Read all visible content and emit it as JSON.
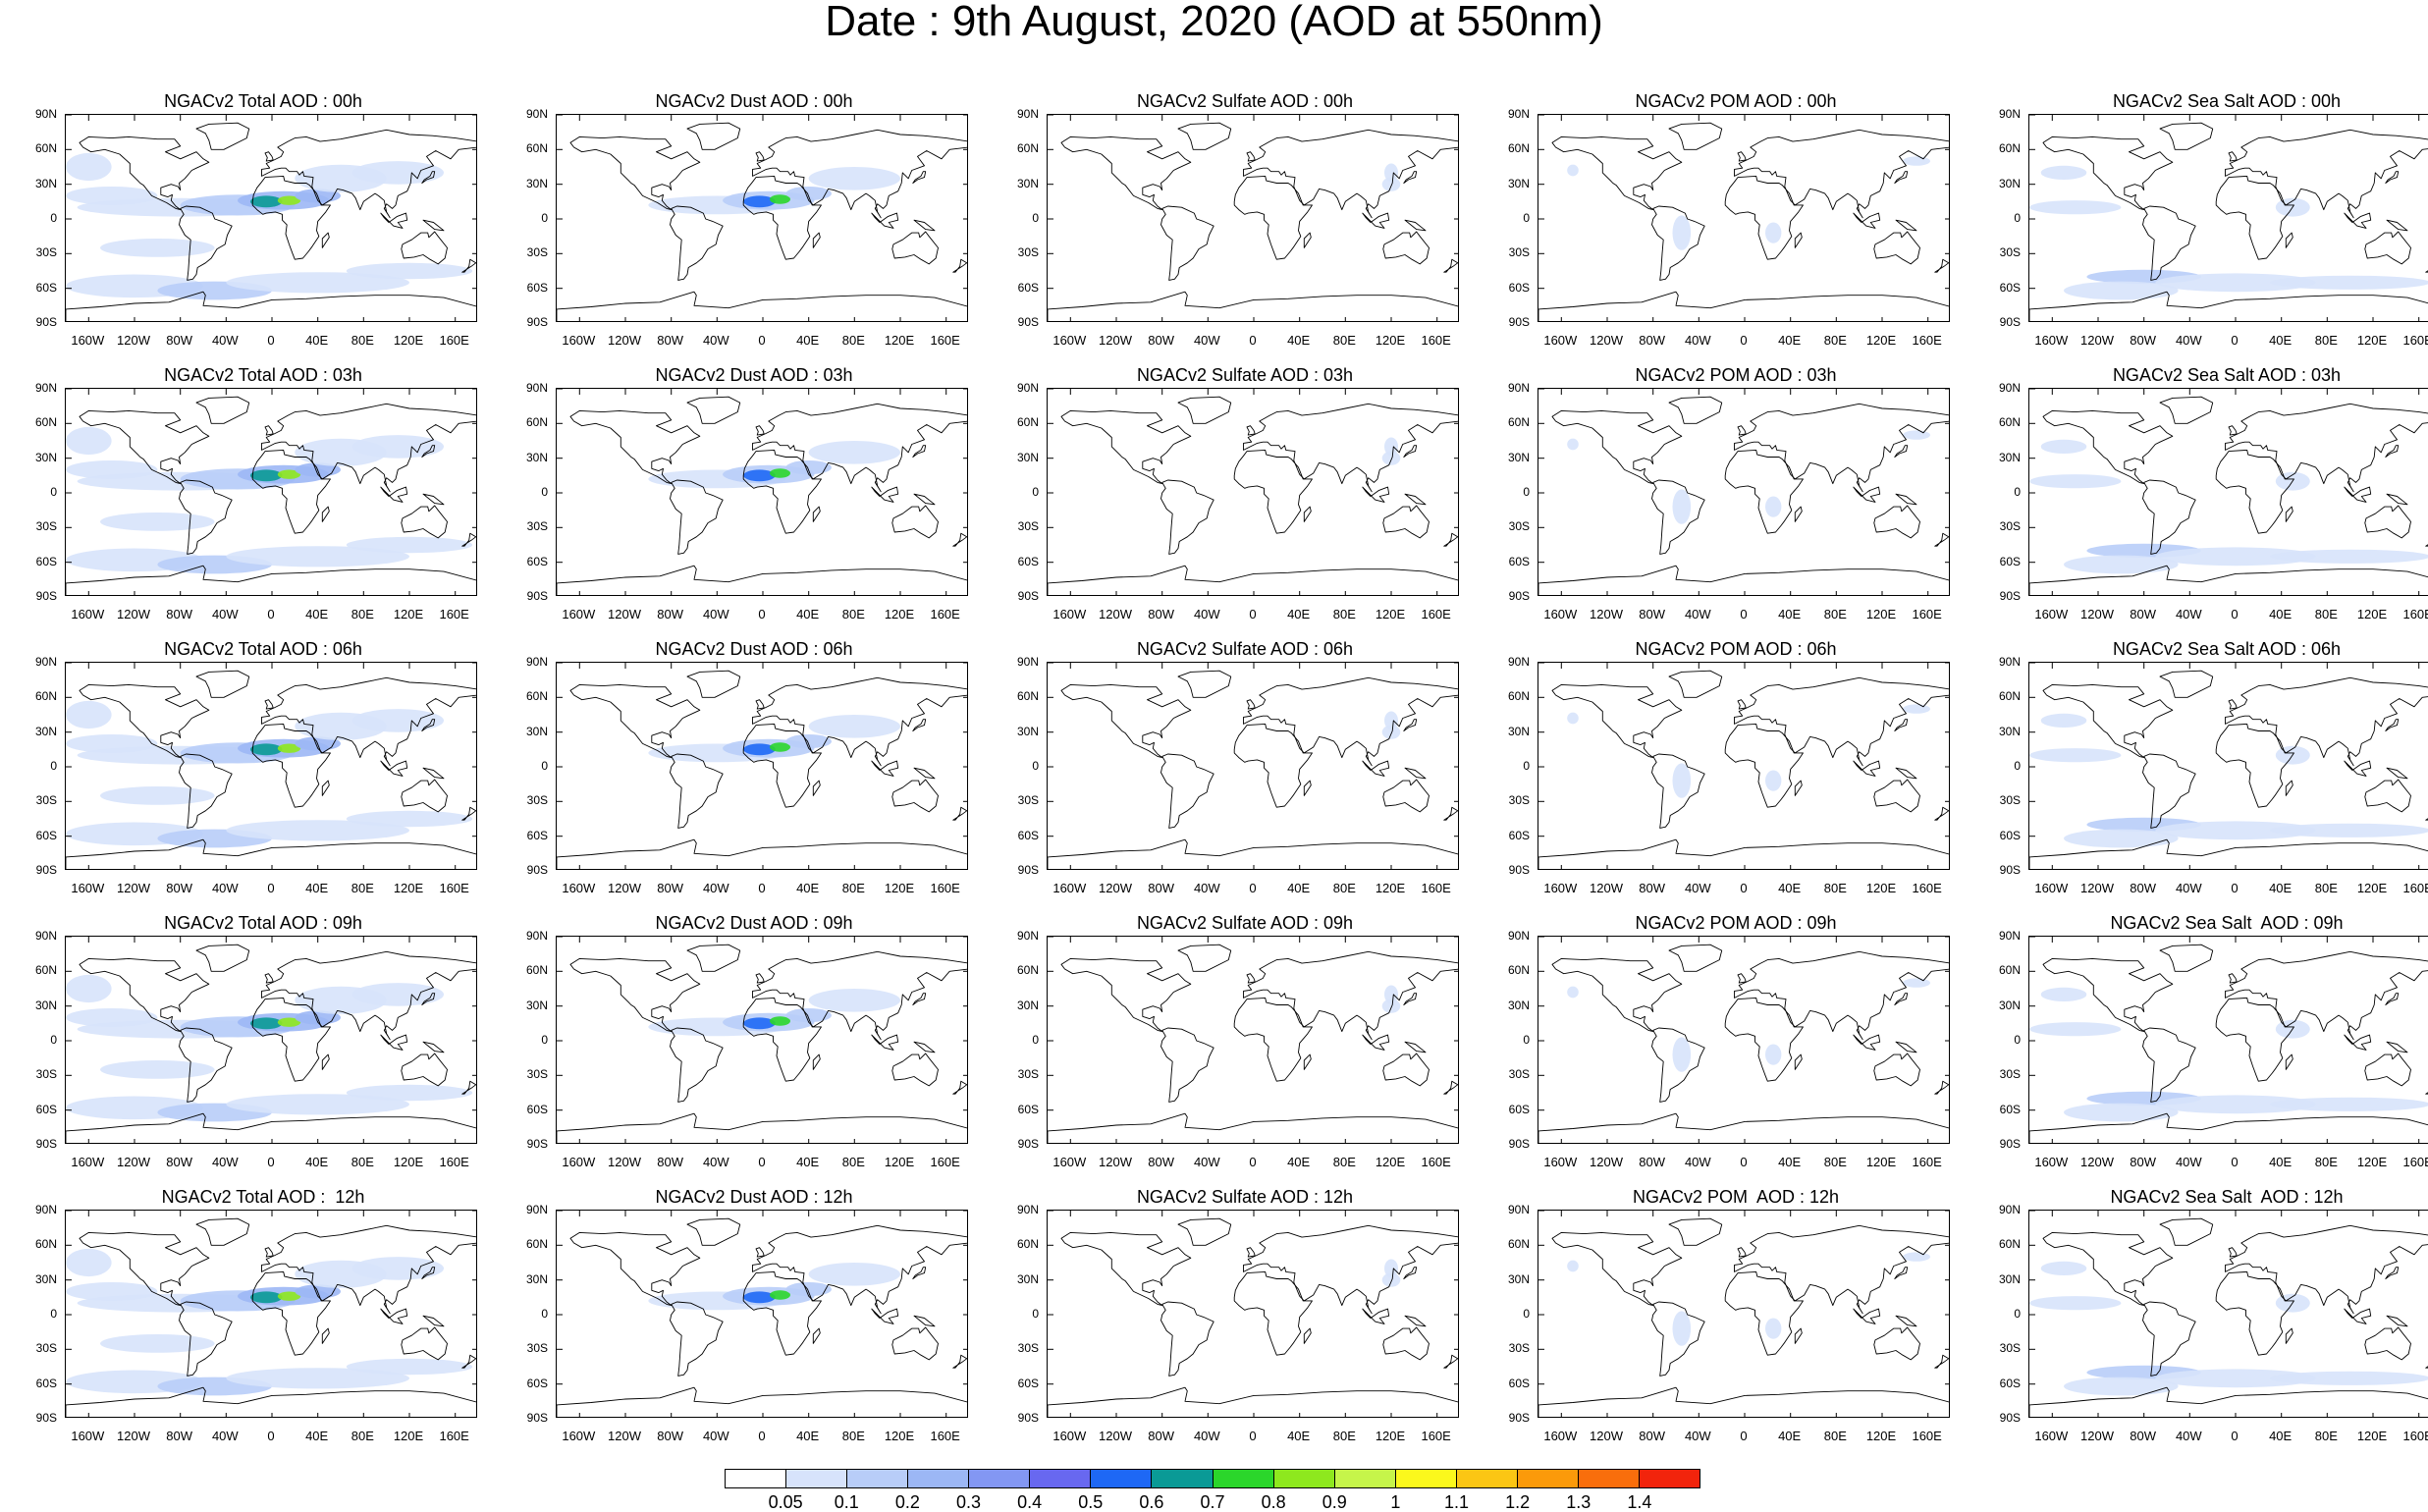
{
  "title": "Date : 9th August, 2020 (AOD at 550nm)",
  "lat_ticks": [
    "90N",
    "60N",
    "30N",
    "0",
    "30S",
    "60S",
    "90S"
  ],
  "lon_ticks": [
    "160W",
    "120W",
    "80W",
    "40W",
    "0",
    "40E",
    "80E",
    "120E",
    "160E"
  ],
  "lon_values": [
    -160,
    -120,
    -80,
    -40,
    0,
    40,
    80,
    120,
    160
  ],
  "columns": [
    "total",
    "dust",
    "sulfate",
    "pom",
    "seasalt"
  ],
  "panel_titles": [
    [
      "NGACv2 Total AOD : 00h",
      "NGACv2 Dust AOD : 00h",
      "NGACv2 Sulfate AOD : 00h",
      "NGACv2 POM AOD : 00h",
      "NGACv2 Sea Salt AOD : 00h"
    ],
    [
      "NGACv2 Total AOD : 03h",
      "NGACv2 Dust AOD : 03h",
      "NGACv2 Sulfate AOD : 03h",
      "NGACv2 POM AOD : 03h",
      "NGACv2 Sea Salt AOD : 03h"
    ],
    [
      "NGACv2 Total AOD : 06h",
      "NGACv2 Dust AOD : 06h",
      "NGACv2 Sulfate AOD : 06h",
      "NGACv2 POM AOD : 06h",
      "NGACv2 Sea Salt AOD : 06h"
    ],
    [
      "NGACv2 Total AOD : 09h",
      "NGACv2 Dust AOD : 09h",
      "NGACv2 Sulfate AOD : 09h",
      "NGACv2 POM AOD : 09h",
      "NGACv2 Sea Salt  AOD : 09h"
    ],
    [
      "NGACv2 Total AOD :  12h",
      "NGACv2 Dust AOD : 12h",
      "NGACv2 Sulfate AOD : 12h",
      "NGACv2 POM  AOD : 12h",
      "NGACv2 Sea Salt  AOD : 12h"
    ]
  ],
  "colorbar": {
    "labels": [
      "0.05",
      "0.1",
      "0.2",
      "0.3",
      "0.4",
      "0.5",
      "0.6",
      "0.7",
      "0.8",
      "0.9",
      "1",
      "1.1",
      "1.2",
      "1.3",
      "1.4"
    ],
    "colors": [
      "#ffffff",
      "#d7e3fb",
      "#b8cdf8",
      "#9cb7f5",
      "#8397f3",
      "#6868f0",
      "#1e68f5",
      "#0a9a96",
      "#2bd62b",
      "#8ee81e",
      "#c6f54a",
      "#fbf81c",
      "#fbc614",
      "#fb9a0a",
      "#f96e0c",
      "#f2240c"
    ]
  },
  "land_color": "#000000"
}
